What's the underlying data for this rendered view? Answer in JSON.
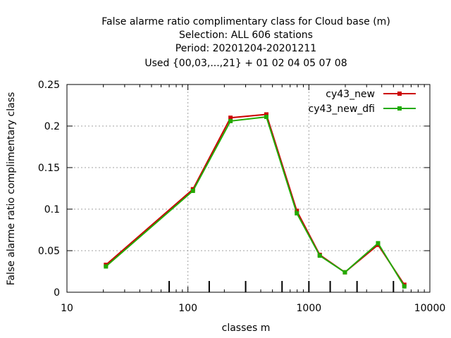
{
  "chart_data": {
    "type": "line",
    "title_lines": [
      "False alarme ratio complimentary class  for Cloud base (m)",
      "Selection: ALL    606 stations",
      "Period: 20201204-20201211",
      "Used {00,03,...,21} + 01 02 04 05 07 08"
    ],
    "xlabel": "classes m",
    "ylabel": "False alarme ratio complimentary class",
    "x_scale": "log",
    "xlim": [
      10,
      10000
    ],
    "ylim": [
      0,
      0.25
    ],
    "x_ticks": [
      10,
      100,
      1000,
      10000
    ],
    "x_tick_labels": [
      "10",
      "100",
      "1000",
      "10000"
    ],
    "y_ticks": [
      0,
      0.05,
      0.1,
      0.15,
      0.2,
      0.25
    ],
    "y_tick_labels": [
      "0",
      "0.05",
      "0.1",
      "0.15",
      "0.2",
      "0.25"
    ],
    "grid": true,
    "legend_position": "top-right",
    "x": [
      21,
      110,
      225,
      445,
      795,
      1230,
      1985,
      3730,
      6150
    ],
    "series": [
      {
        "name": "cy43_new",
        "color": "#cc0000",
        "values": [
          0.033,
          0.124,
          0.21,
          0.214,
          0.098,
          0.045,
          0.024,
          0.057,
          0.009
        ]
      },
      {
        "name": "cy43_new_dfi",
        "color": "#22aa00",
        "values": [
          0.031,
          0.122,
          0.206,
          0.211,
          0.095,
          0.044,
          0.024,
          0.059,
          0.007
        ]
      }
    ],
    "class_boundaries": [
      70,
      150,
      300,
      600,
      1000,
      1500,
      2500,
      5000
    ]
  }
}
